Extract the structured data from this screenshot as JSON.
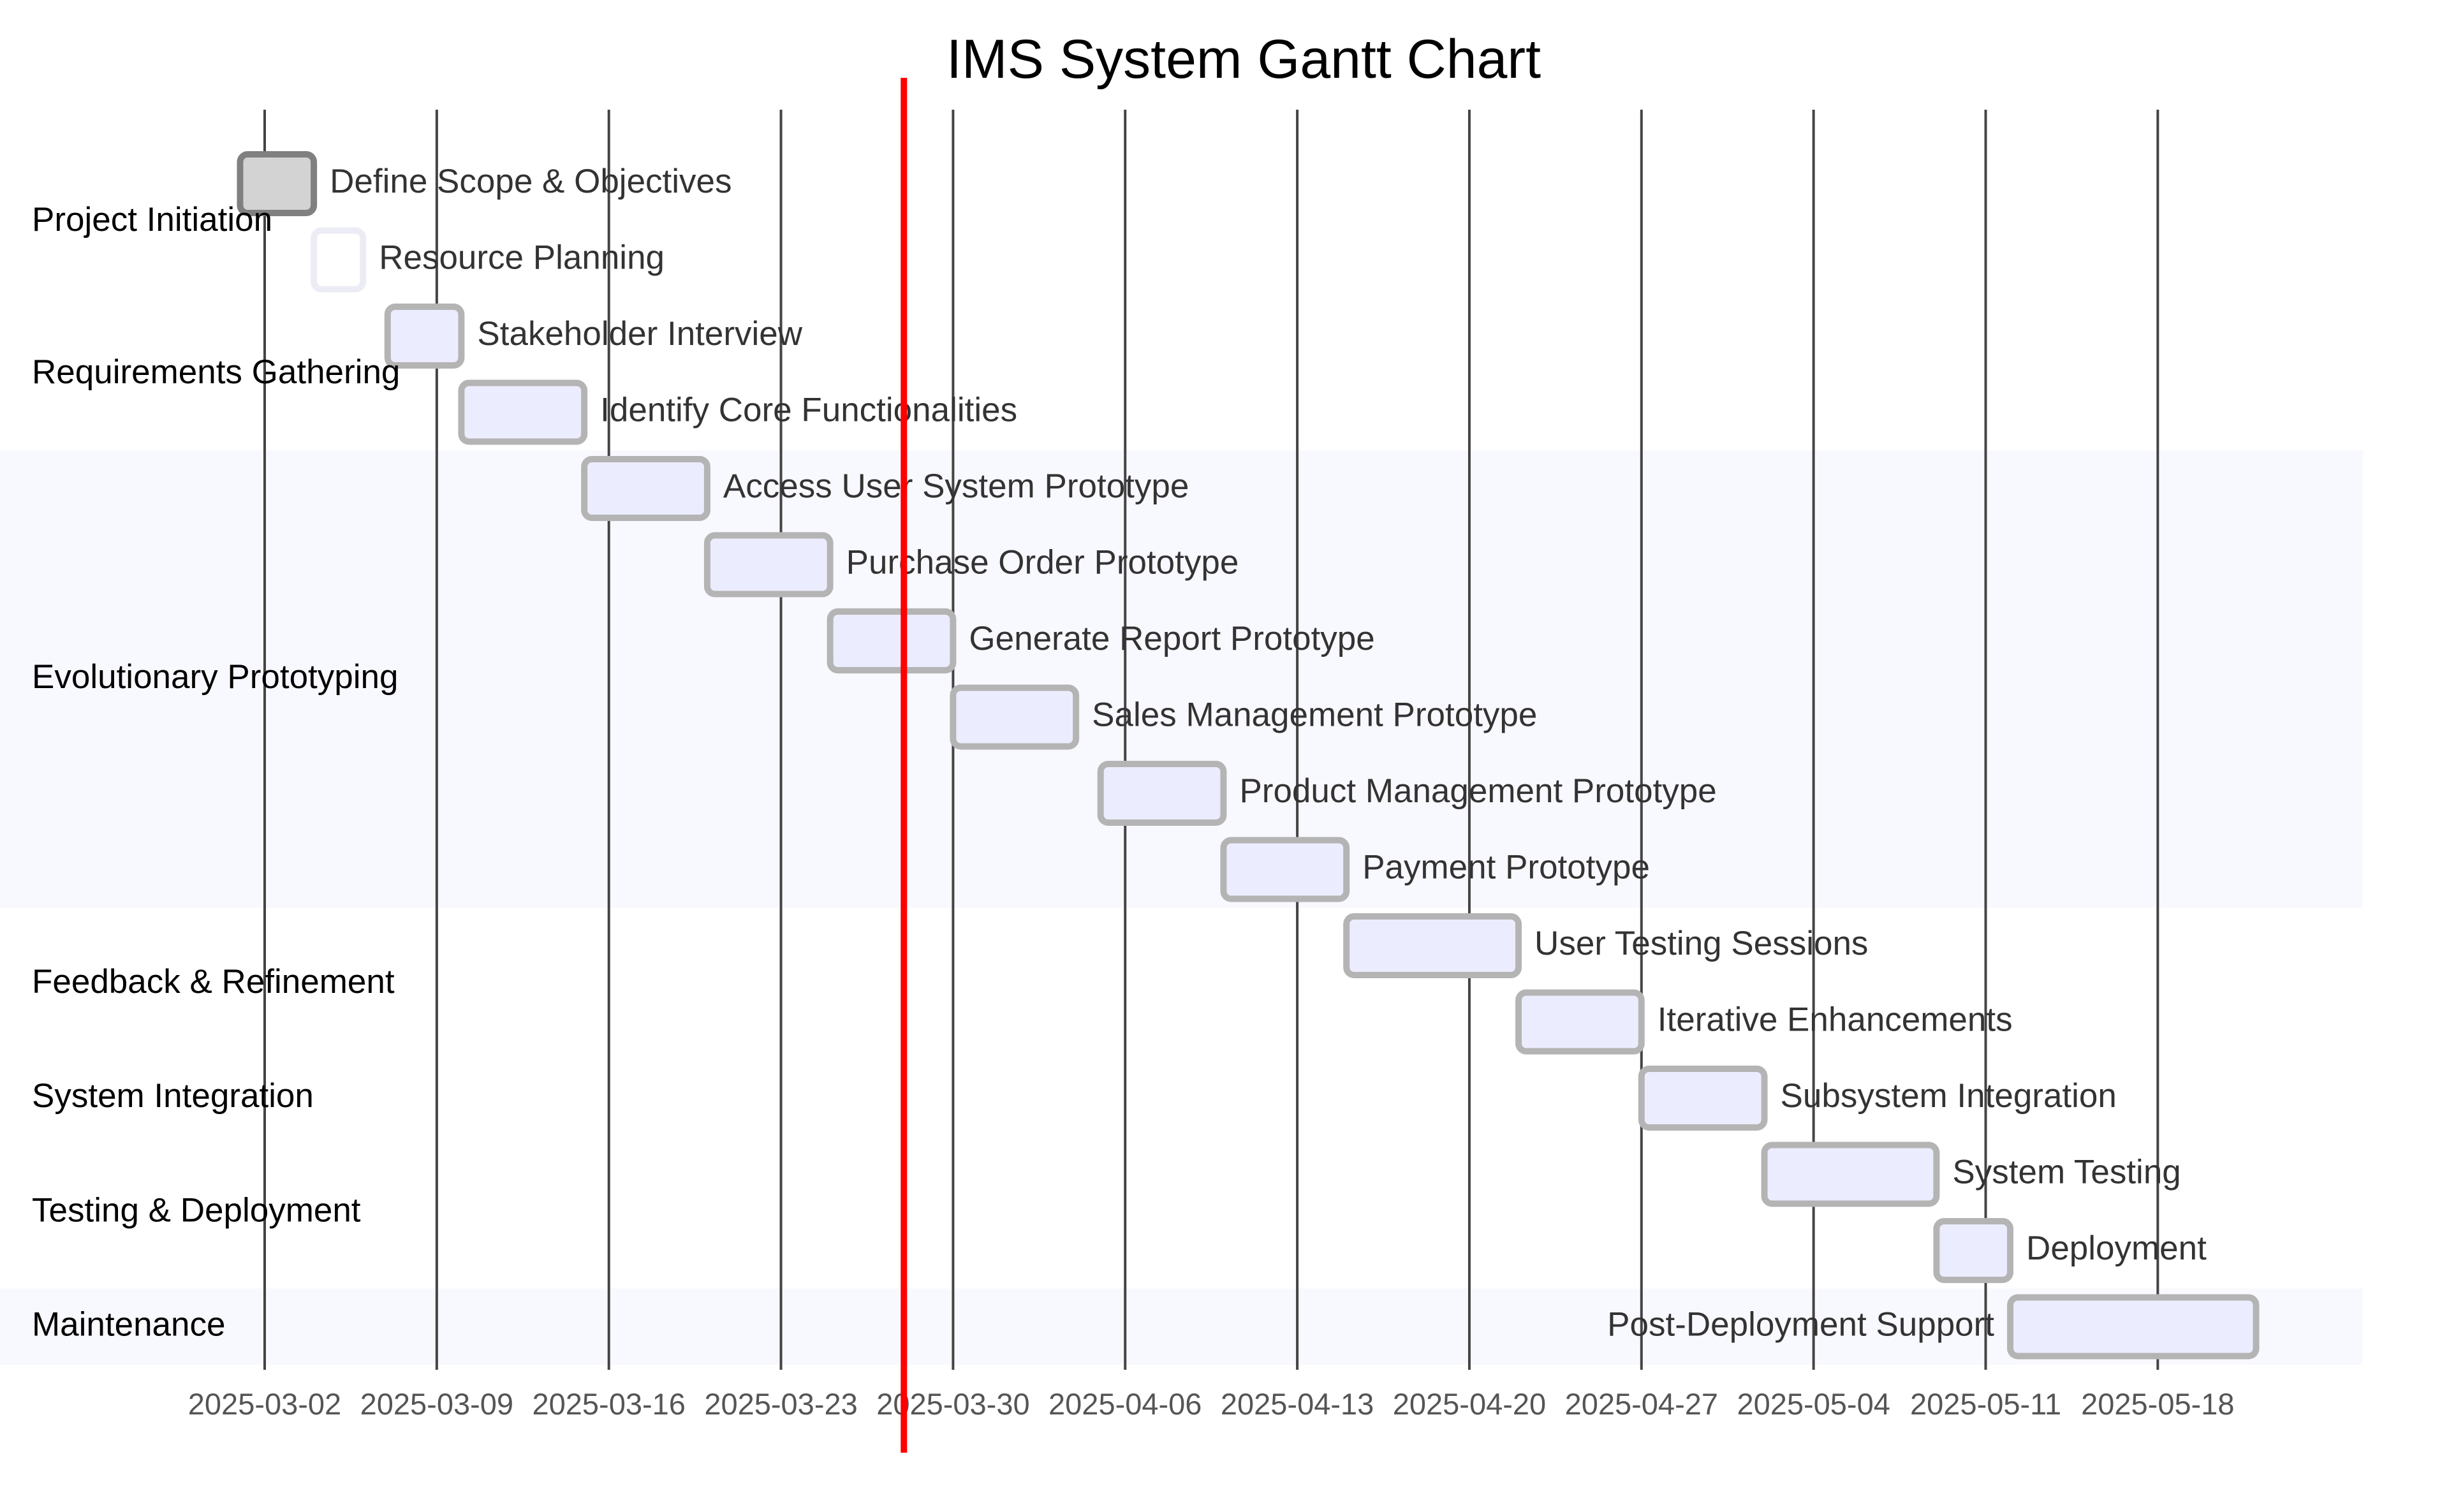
{
  "chart_data": {
    "type": "gantt",
    "title": "IMS System Gantt Chart",
    "today": "2025-03-28",
    "x_ticks": [
      "2025-03-02",
      "2025-03-09",
      "2025-03-16",
      "2025-03-23",
      "2025-03-30",
      "2025-04-06",
      "2025-04-13",
      "2025-04-20",
      "2025-04-27",
      "2025-05-04",
      "2025-05-11",
      "2025-05-18"
    ],
    "sections": [
      {
        "name": "Project Initiation",
        "shaded": false
      },
      {
        "name": "Requirements Gathering",
        "shaded": false
      },
      {
        "name": "Evolutionary Prototyping",
        "shaded": true
      },
      {
        "name": "Feedback & Refinement",
        "shaded": false
      },
      {
        "name": "System Integration",
        "shaded": false
      },
      {
        "name": "Testing & Deployment",
        "shaded": false
      },
      {
        "name": "Maintenance",
        "shaded": true
      }
    ],
    "tasks": [
      {
        "name": "Define Scope & Objectives",
        "section": 0,
        "start": "2025-03-01",
        "end": "2025-03-04",
        "status": "done"
      },
      {
        "name": "Resource Planning",
        "section": 0,
        "start": "2025-03-04",
        "end": "2025-03-06",
        "status": "milestone-outline"
      },
      {
        "name": "Stakeholder Interview",
        "section": 1,
        "start": "2025-03-07",
        "end": "2025-03-10",
        "status": "normal"
      },
      {
        "name": "Identify Core Functionalities",
        "section": 1,
        "start": "2025-03-10",
        "end": "2025-03-15",
        "status": "normal"
      },
      {
        "name": "Access User System Prototype",
        "section": 2,
        "start": "2025-03-15",
        "end": "2025-03-20",
        "status": "normal"
      },
      {
        "name": "Purchase Order Prototype",
        "section": 2,
        "start": "2025-03-20",
        "end": "2025-03-25",
        "status": "normal"
      },
      {
        "name": "Generate Report Prototype",
        "section": 2,
        "start": "2025-03-25",
        "end": "2025-03-30",
        "status": "normal"
      },
      {
        "name": "Sales Management Prototype",
        "section": 2,
        "start": "2025-03-30",
        "end": "2025-04-04",
        "status": "normal"
      },
      {
        "name": "Product Management Prototype",
        "section": 2,
        "start": "2025-04-05",
        "end": "2025-04-10",
        "status": "normal"
      },
      {
        "name": "Payment Prototype",
        "section": 2,
        "start": "2025-04-10",
        "end": "2025-04-15",
        "status": "normal"
      },
      {
        "name": "User Testing Sessions",
        "section": 3,
        "start": "2025-04-15",
        "end": "2025-04-22",
        "status": "normal"
      },
      {
        "name": "Iterative Enhancements",
        "section": 3,
        "start": "2025-04-22",
        "end": "2025-04-27",
        "status": "normal"
      },
      {
        "name": "Subsystem Integration",
        "section": 4,
        "start": "2025-04-27",
        "end": "2025-05-02",
        "status": "normal"
      },
      {
        "name": "System Testing",
        "section": 5,
        "start": "2025-05-02",
        "end": "2025-05-09",
        "status": "normal"
      },
      {
        "name": "Deployment",
        "section": 5,
        "start": "2025-05-09",
        "end": "2025-05-12",
        "status": "normal"
      },
      {
        "name": "Post-Deployment Support",
        "section": 6,
        "start": "2025-05-12",
        "end": "2025-05-22",
        "status": "normal",
        "label_side": "left"
      }
    ],
    "colors": {
      "task_fill": "#ececff",
      "task_stroke": "#b4b4b4",
      "done_fill": "#d3d3d3",
      "done_stroke": "#808080",
      "outline_stroke": "#ececf5",
      "today_line": "#ff0000",
      "section_shade": "#f8f8ff"
    }
  }
}
